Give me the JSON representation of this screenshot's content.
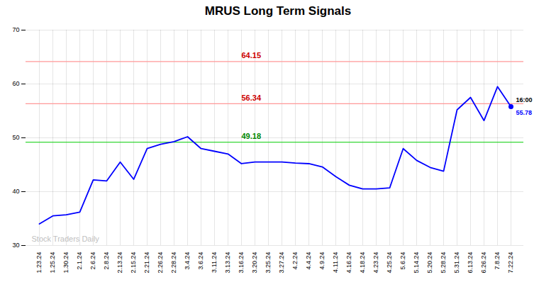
{
  "chart_data": {
    "type": "line",
    "title": "MRUS Long Term Signals",
    "categories": [
      "1.23.24",
      "1.25.24",
      "1.30.24",
      "2.1.24",
      "2.6.24",
      "2.8.24",
      "2.13.24",
      "2.15.24",
      "2.21.24",
      "2.26.24",
      "2.28.24",
      "3.4.24",
      "3.6.24",
      "3.11.24",
      "3.13.24",
      "3.16.24",
      "3.20.24",
      "3.25.24",
      "3.27.24",
      "4.2.24",
      "4.4.24",
      "4.9.24",
      "4.11.24",
      "4.16.24",
      "4.18.24",
      "4.23.24",
      "4.25.24",
      "5.6.24",
      "5.14.24",
      "5.20.24",
      "5.28.24",
      "5.31.24",
      "6.13.24",
      "6.26.24",
      "7.8.24",
      "7.22.24"
    ],
    "values": [
      34.0,
      35.5,
      35.7,
      36.2,
      42.2,
      42.0,
      45.5,
      42.3,
      48.0,
      48.8,
      49.3,
      50.2,
      48.0,
      47.5,
      47.0,
      45.2,
      45.5,
      45.5,
      45.5,
      45.3,
      45.2,
      44.6,
      42.8,
      41.2,
      40.5,
      40.5,
      40.7,
      48.0,
      45.8,
      44.5,
      43.8,
      55.2,
      57.5,
      53.2,
      59.5,
      55.78
    ],
    "color": "#0000FF",
    "marker": "last",
    "ylim": [
      30,
      70
    ],
    "yticks": [
      30,
      40,
      50,
      60,
      70
    ],
    "grid": true,
    "reference_lines": [
      {
        "value": 49.18,
        "label": "49.18",
        "color": "#00CC00",
        "label_color": "#008800"
      },
      {
        "value": 56.34,
        "label": "56.34",
        "color": "#FF9999",
        "label_color": "#CC0000"
      },
      {
        "value": 64.15,
        "label": "64.15",
        "color": "#FF9999",
        "label_color": "#CC0000"
      }
    ],
    "last_point_labels": [
      {
        "text": "16:00",
        "color": "#000000"
      },
      {
        "text": "55.78",
        "color": "#0000FF"
      }
    ],
    "watermark": {
      "text": "Stock Traders Daily",
      "color": "#C0C0C0"
    }
  }
}
